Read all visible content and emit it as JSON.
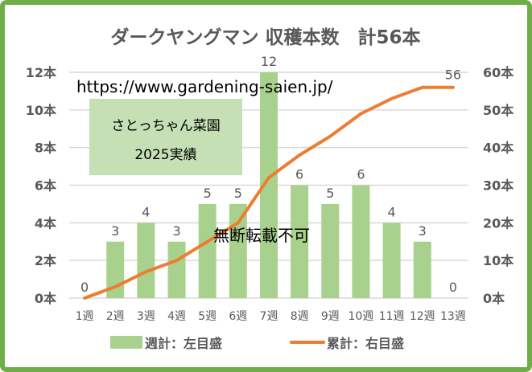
{
  "chart_data": {
    "type": "bar+line",
    "title": "ダークヤングマン 収穫本数　計56本",
    "categories": [
      "1週",
      "2週",
      "3週",
      "4週",
      "5週",
      "6週",
      "7週",
      "8週",
      "9週",
      "10週",
      "11週",
      "12週",
      "13週"
    ],
    "series": [
      {
        "name": "週計：左目盛",
        "type": "bar",
        "axis": "left",
        "color": "#a9d18e",
        "values": [
          0,
          3,
          4,
          3,
          5,
          5,
          12,
          6,
          5,
          6,
          4,
          3,
          0
        ]
      },
      {
        "name": "累計：右目盛",
        "type": "line",
        "axis": "right",
        "color": "#ed7d31",
        "values": [
          0,
          3,
          7,
          10,
          15,
          20,
          32,
          38,
          43,
          49,
          53,
          56,
          56
        ]
      }
    ],
    "left_axis": {
      "ylim": [
        0,
        12
      ],
      "ticks": [
        "0本",
        "2本",
        "4本",
        "6本",
        "8本",
        "10本",
        "12本"
      ]
    },
    "right_axis": {
      "ylim": [
        0,
        60
      ],
      "ticks": [
        "0本",
        "10本",
        "20本",
        "30本",
        "40本",
        "50本",
        "60本"
      ]
    },
    "line_end_label": "56",
    "grid": true,
    "legend_placement": "bottom"
  },
  "overlays": {
    "url": "https://www.gardening-saien.jp/",
    "box_line1": "さとっちゃん菜園",
    "box_line2": "2025実績",
    "watermark": "無断転載不可"
  },
  "colors": {
    "border": "#70ad47",
    "box": "#c5e0b4",
    "grid": "#d9d9d9"
  }
}
